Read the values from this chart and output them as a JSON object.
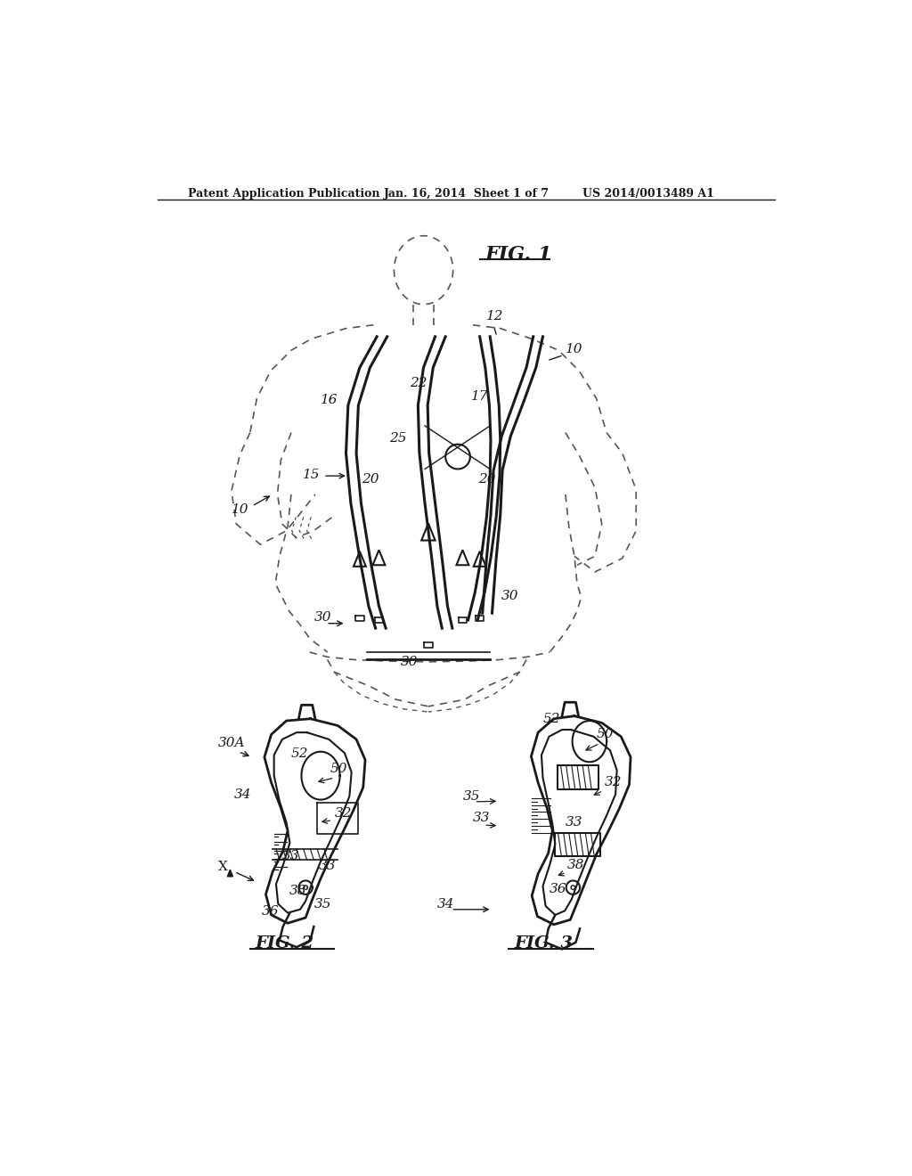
{
  "background_color": "#ffffff",
  "header_left": "Patent Application Publication",
  "header_mid": "Jan. 16, 2014  Sheet 1 of 7",
  "header_right": "US 2014/0013489 A1",
  "fig1_title": "FIG. 1",
  "fig2_title": "FIG. 2",
  "fig3_title": "FIG. 3",
  "fig30a_label": "30A",
  "fig_x_label": "X",
  "label_color": "#1a1a1a",
  "line_color": "#1a1a1a",
  "dashed_color": "#555555"
}
